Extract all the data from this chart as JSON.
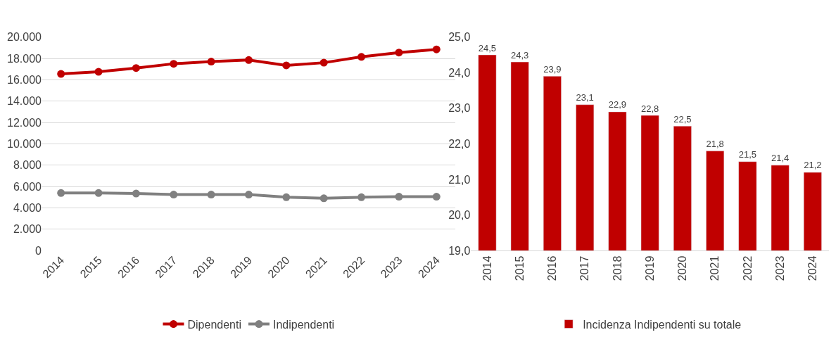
{
  "chart_data": [
    {
      "type": "line",
      "categories": [
        "2014",
        "2015",
        "2016",
        "2017",
        "2018",
        "2019",
        "2020",
        "2021",
        "2022",
        "2023",
        "2024"
      ],
      "series": [
        {
          "name": "Dipendenti",
          "color": "#c00000",
          "values": [
            16550,
            16750,
            17100,
            17500,
            17700,
            17850,
            17350,
            17600,
            18150,
            18550,
            18850
          ]
        },
        {
          "name": "Indipendenti",
          "color": "#808080",
          "values": [
            5400,
            5400,
            5350,
            5250,
            5250,
            5250,
            5000,
            4900,
            5000,
            5050,
            5050
          ]
        }
      ],
      "ylim": [
        0,
        20000
      ],
      "yticks": [
        {
          "value": 0,
          "label": "0"
        },
        {
          "value": 2000,
          "label": "2.000"
        },
        {
          "value": 4000,
          "label": "4.000"
        },
        {
          "value": 6000,
          "label": "6.000"
        },
        {
          "value": 8000,
          "label": "8.000"
        },
        {
          "value": 10000,
          "label": "10.000"
        },
        {
          "value": 12000,
          "label": "12.000"
        },
        {
          "value": 14000,
          "label": "14.000"
        },
        {
          "value": 16000,
          "label": "16.000"
        },
        {
          "value": 18000,
          "label": "18.000"
        },
        {
          "value": 20000,
          "label": "20.000"
        }
      ],
      "grid": "y",
      "legend": "bottom",
      "marker": "circle",
      "line_style": "solid"
    },
    {
      "type": "bar",
      "categories": [
        "2014",
        "2015",
        "2016",
        "2017",
        "2018",
        "2019",
        "2020",
        "2021",
        "2022",
        "2023",
        "2024"
      ],
      "series": [
        {
          "name": "Incidenza Indipendenti su totale",
          "color": "#c00000",
          "values": [
            24.5,
            24.3,
            23.9,
            23.1,
            22.9,
            22.8,
            22.5,
            21.8,
            21.5,
            21.4,
            21.2
          ],
          "value_labels": [
            "24,5",
            "24,3",
            "23,9",
            "23,1",
            "22,9",
            "22,8",
            "22,5",
            "21,8",
            "21,5",
            "21,4",
            "21,2"
          ]
        }
      ],
      "ylim": [
        19,
        25
      ],
      "yticks": [
        {
          "value": 19,
          "label": "19,0"
        },
        {
          "value": 20,
          "label": "20,0"
        },
        {
          "value": 21,
          "label": "21,0"
        },
        {
          "value": 22,
          "label": "22,0"
        },
        {
          "value": 23,
          "label": "23,0"
        },
        {
          "value": 24,
          "label": "24,0"
        },
        {
          "value": 25,
          "label": "25,0"
        }
      ],
      "grid": false,
      "legend": "bottom"
    }
  ]
}
